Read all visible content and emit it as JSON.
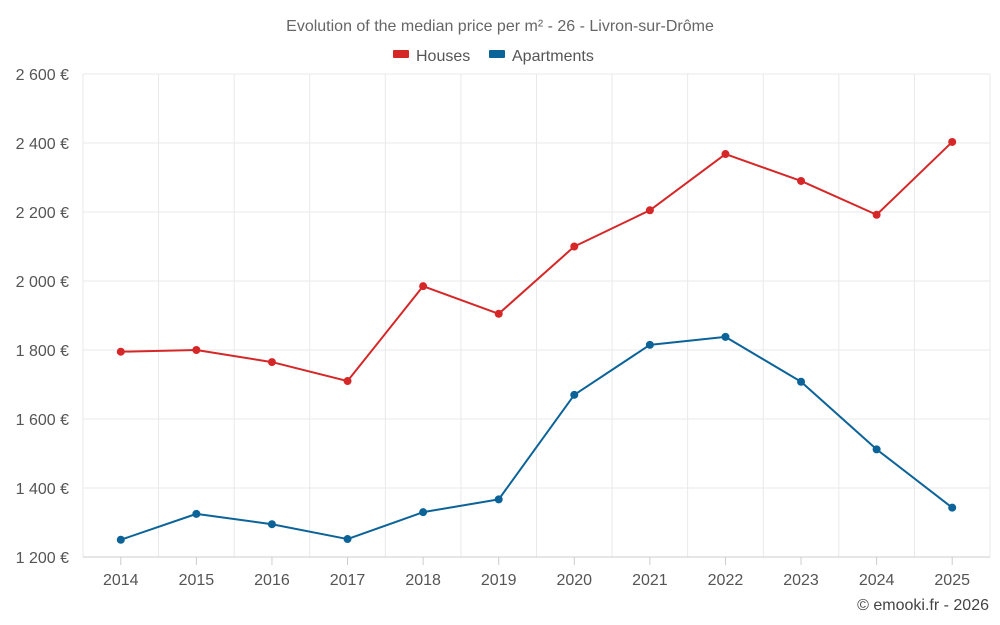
{
  "chart_data": {
    "type": "line",
    "title": "Evolution of the median price per m² - 26 - Livron-sur-Drôme",
    "categories": [
      "2014",
      "2015",
      "2016",
      "2017",
      "2018",
      "2019",
      "2020",
      "2021",
      "2022",
      "2023",
      "2024",
      "2025"
    ],
    "series": [
      {
        "name": "Houses",
        "color": "#d62728",
        "values": [
          1795,
          1800,
          1765,
          1710,
          1985,
          1905,
          2100,
          2205,
          2368,
          2290,
          2192,
          2403
        ]
      },
      {
        "name": "Apartments",
        "color": "#0b6398",
        "values": [
          1250,
          1325,
          1295,
          1252,
          1330,
          1367,
          1670,
          1815,
          1838,
          1708,
          1512,
          1343
        ]
      }
    ],
    "ylim": [
      1200,
      2600
    ],
    "yticks": [
      1200,
      1400,
      1600,
      1800,
      2000,
      2200,
      2400,
      2600
    ],
    "ytick_labels": [
      "1 200 €",
      "1 400 €",
      "1 600 €",
      "1 800 €",
      "2 000 €",
      "2 200 €",
      "2 400 €",
      "2 600 €"
    ],
    "legend_position": "top-center",
    "grid": true,
    "xlabel": "",
    "ylabel": ""
  },
  "credit": "© emooki.fr - 2026"
}
